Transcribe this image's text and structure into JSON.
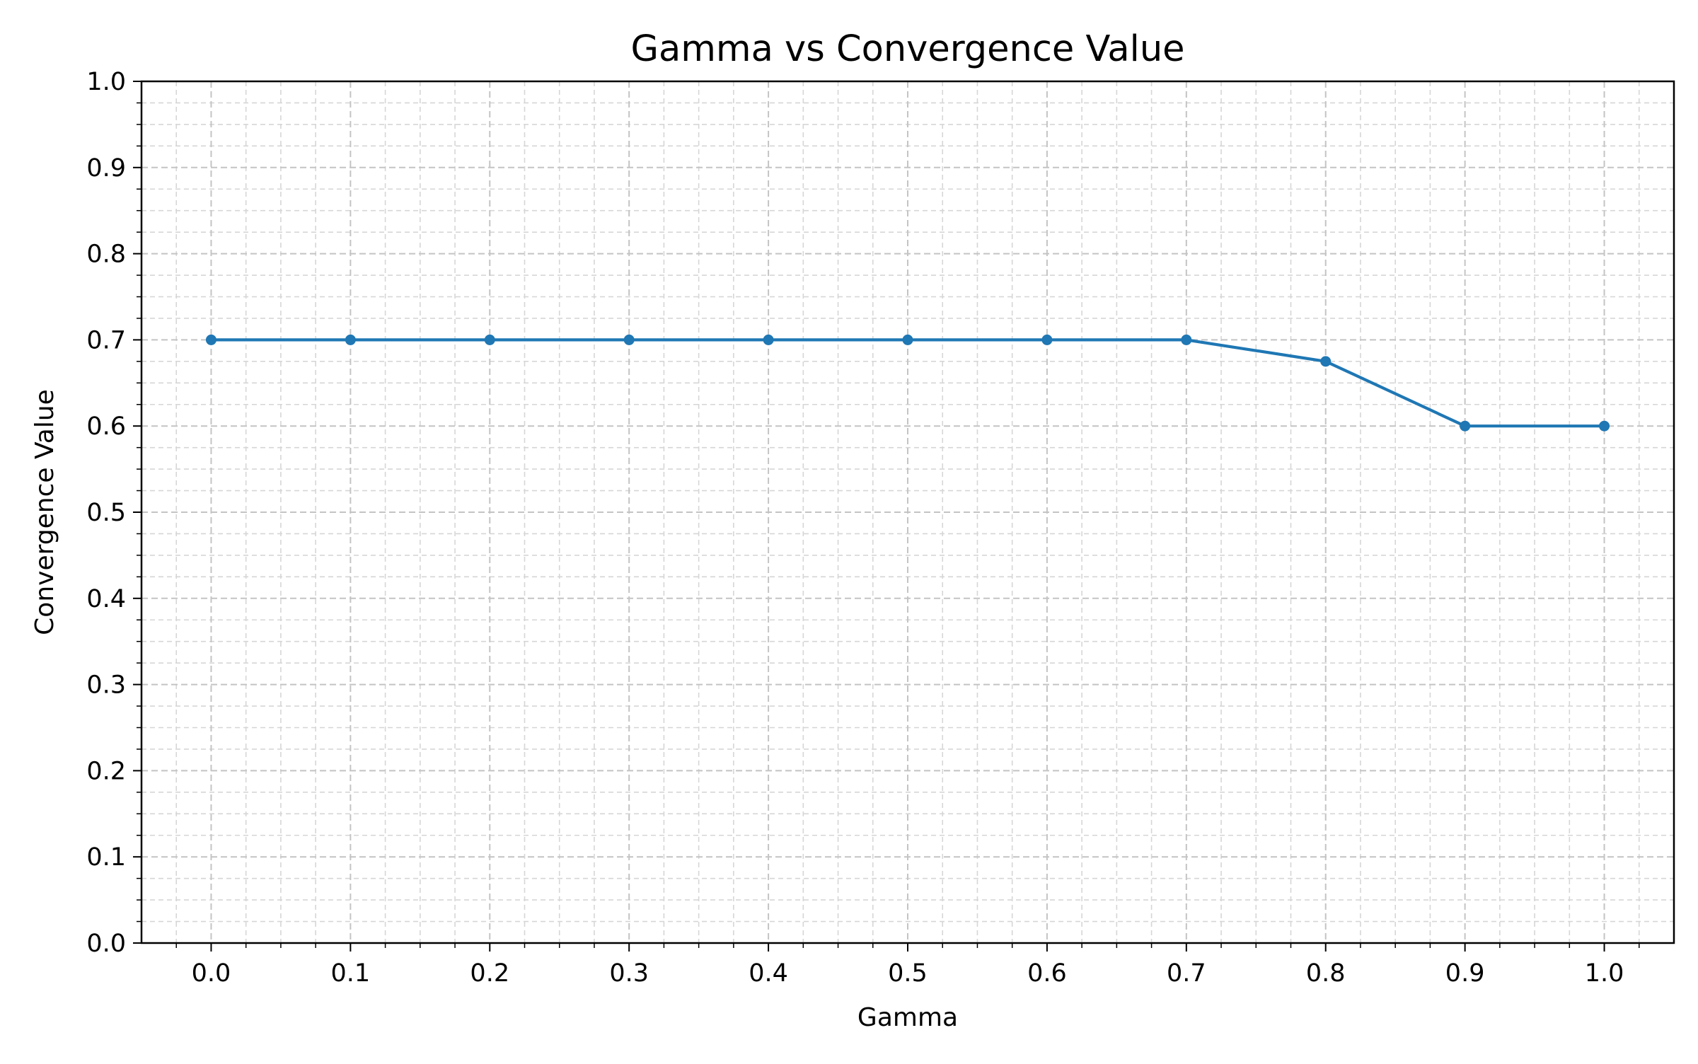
{
  "chart_data": {
    "type": "line",
    "title": "Gamma vs Convergence Value",
    "xlabel": "Gamma",
    "ylabel": "Convergence Value",
    "xlim": [
      -0.05,
      1.05
    ],
    "ylim": [
      0.0,
      1.0
    ],
    "x_ticks": [
      "0.0",
      "0.1",
      "0.2",
      "0.3",
      "0.4",
      "0.5",
      "0.6",
      "0.7",
      "0.8",
      "0.9",
      "1.0"
    ],
    "y_ticks": [
      "0.0",
      "0.1",
      "0.2",
      "0.3",
      "0.4",
      "0.5",
      "0.6",
      "0.7",
      "0.8",
      "0.9",
      "1.0"
    ],
    "grid": "major and minor, dashed",
    "legend": "none",
    "series": [
      {
        "x": [
          0.0,
          0.1,
          0.2,
          0.3,
          0.4,
          0.5,
          0.6,
          0.7,
          0.8,
          0.9,
          1.0
        ],
        "y": [
          0.7,
          0.7,
          0.7,
          0.7,
          0.7,
          0.7,
          0.7,
          0.7,
          0.675,
          0.6,
          0.6
        ],
        "color": "#1f77b4",
        "marker": "circle"
      }
    ]
  }
}
